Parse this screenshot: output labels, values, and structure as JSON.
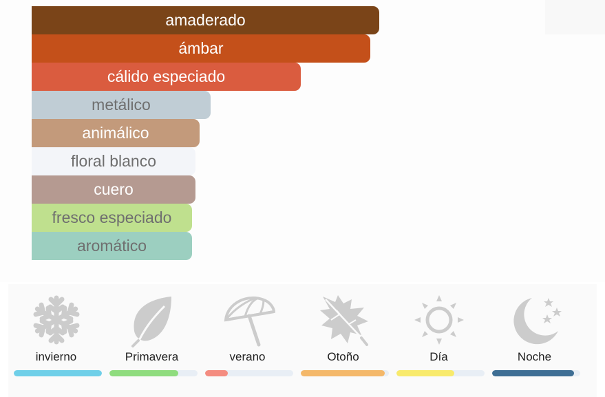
{
  "accords": [
    {
      "label": "amaderado",
      "strength": 1.0,
      "color": "#7a4418",
      "text_color": "#ffffff"
    },
    {
      "label": "ámbar",
      "strength": 0.974,
      "color": "#c4501a",
      "text_color": "#ffffff"
    },
    {
      "label": "cálido especiado",
      "strength": 0.774,
      "color": "#da5c3f",
      "text_color": "#ffffff"
    },
    {
      "label": "metálico",
      "strength": 0.515,
      "color": "#c0cdd5",
      "text_color": "#6f6f6f"
    },
    {
      "label": "animálico",
      "strength": 0.483,
      "color": "#c39a7b",
      "text_color": "#ffffff"
    },
    {
      "label": "floral blanco",
      "strength": 0.472,
      "color": "#f3f5f9",
      "text_color": "#6f6f6f"
    },
    {
      "label": "cuero",
      "strength": 0.472,
      "color": "#b59a91",
      "text_color": "#ffffff"
    },
    {
      "label": "fresco especiado",
      "strength": 0.462,
      "color": "#bfe08e",
      "text_color": "#6f6f6f"
    },
    {
      "label": "aromático",
      "strength": 0.462,
      "color": "#9ccfc0",
      "text_color": "#6f6f6f"
    }
  ],
  "seasons": [
    {
      "label": "invierno",
      "icon": "snowflake-icon",
      "value": 1.0,
      "color": "#6fcfe8"
    },
    {
      "label": "Primavera",
      "icon": "leaf-icon",
      "value": 0.78,
      "color": "#8fdc7e"
    },
    {
      "label": "verano",
      "icon": "umbrella-icon",
      "value": 0.26,
      "color": "#f48c80"
    },
    {
      "label": "Otoño",
      "icon": "maple-leaf-icon",
      "value": 0.95,
      "color": "#f4b86a"
    },
    {
      "label": "Día",
      "icon": "sun-icon",
      "value": 0.66,
      "color": "#f8ea6c"
    },
    {
      "label": "Noche",
      "icon": "moon-stars-icon",
      "value": 0.93,
      "color": "#3e6e94"
    }
  ],
  "icon_color": "#cccccc"
}
